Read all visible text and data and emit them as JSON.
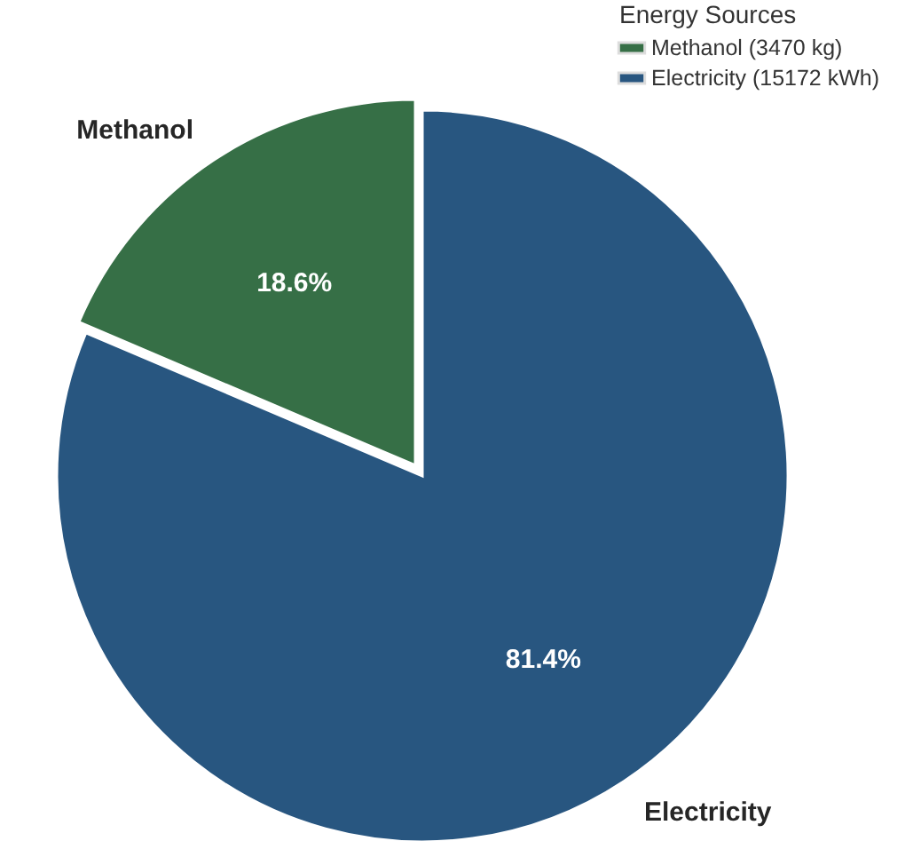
{
  "chart_data": {
    "type": "pie",
    "categories": [
      "Methanol (3470 kg)",
      "Electricity (15172 kWh)"
    ],
    "values": [
      18.6,
      81.4
    ],
    "colors": [
      "#366f46",
      "#285680"
    ],
    "value_labels": [
      "18.6%",
      "81.4%"
    ],
    "legend_title": "Energy Sources",
    "legend": "top right",
    "annotations": [
      "Methanol",
      "Electricity"
    ]
  }
}
